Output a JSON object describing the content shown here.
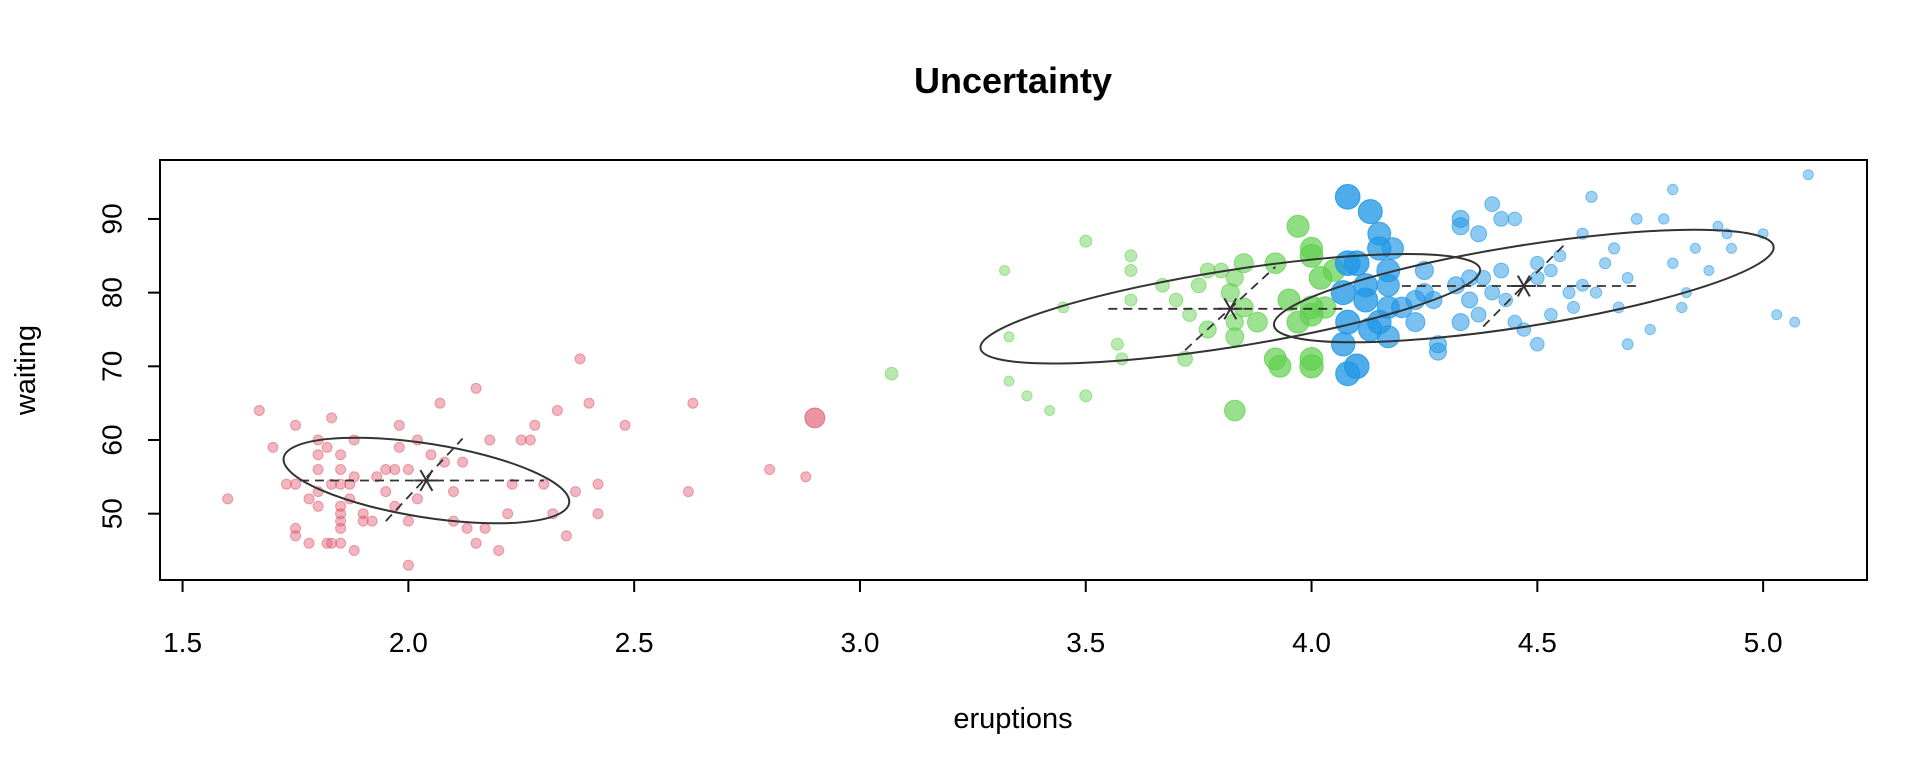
{
  "chart_data": {
    "type": "scatter",
    "title": "Uncertainty",
    "xlabel": "eruptions",
    "ylabel": "waiting",
    "xlim": [
      1.45,
      5.23
    ],
    "ylim": [
      41.0,
      98.0
    ],
    "xticks": [
      "1.5",
      "2.0",
      "2.5",
      "3.0",
      "3.5",
      "4.0",
      "4.5",
      "5.0"
    ],
    "yticks": [
      "50",
      "60",
      "70",
      "80",
      "90"
    ],
    "grid": false,
    "legend": "none",
    "colors": {
      "cluster1": "#df536b",
      "cluster2": "#61d04f",
      "cluster3": "#2297e6",
      "ellipse": "#333333"
    },
    "clusters": [
      {
        "color": "#df536b",
        "center": [
          2.04,
          54.5
        ],
        "ellipse": {
          "rx": 0.32,
          "ry": 5.0,
          "angle_deg": 9
        },
        "axes": {
          "major": [
            [
              1.76,
              54.5
            ],
            [
              2.3,
              54.5
            ]
          ],
          "minor": [
            [
              1.95,
              49.0
            ],
            [
              2.12,
              60.2
            ]
          ]
        },
        "points": [
          [
            1.6,
            52,
            0.05
          ],
          [
            1.67,
            64,
            0.05
          ],
          [
            1.7,
            59,
            0.05
          ],
          [
            1.73,
            54,
            0.05
          ],
          [
            1.75,
            54,
            0.05
          ],
          [
            1.75,
            48,
            0.05
          ],
          [
            1.75,
            47,
            0.05
          ],
          [
            1.75,
            62,
            0.05
          ],
          [
            1.78,
            52,
            0.05
          ],
          [
            1.78,
            46,
            0.05
          ],
          [
            1.8,
            53,
            0.05
          ],
          [
            1.8,
            51,
            0.05
          ],
          [
            1.8,
            56,
            0.05
          ],
          [
            1.8,
            58,
            0.05
          ],
          [
            1.8,
            60,
            0.05
          ],
          [
            1.82,
            46,
            0.05
          ],
          [
            1.82,
            59,
            0.05
          ],
          [
            1.83,
            54,
            0.05
          ],
          [
            1.83,
            46,
            0.05
          ],
          [
            1.83,
            63,
            0.05
          ],
          [
            1.85,
            46,
            0.05
          ],
          [
            1.85,
            48,
            0.05
          ],
          [
            1.85,
            50,
            0.05
          ],
          [
            1.85,
            49,
            0.05
          ],
          [
            1.85,
            51,
            0.05
          ],
          [
            1.85,
            54,
            0.05
          ],
          [
            1.85,
            56,
            0.05
          ],
          [
            1.85,
            58,
            0.05
          ],
          [
            1.87,
            54,
            0.05
          ],
          [
            1.87,
            52,
            0.05
          ],
          [
            1.88,
            55,
            0.05
          ],
          [
            1.88,
            45,
            0.05
          ],
          [
            1.88,
            60,
            0.05
          ],
          [
            1.9,
            50,
            0.05
          ],
          [
            1.9,
            49,
            0.05
          ],
          [
            1.92,
            49,
            0.05
          ],
          [
            1.93,
            55,
            0.05
          ],
          [
            1.95,
            56,
            0.05
          ],
          [
            1.95,
            53,
            0.05
          ],
          [
            1.97,
            56,
            0.05
          ],
          [
            1.97,
            51,
            0.05
          ],
          [
            1.98,
            59,
            0.05
          ],
          [
            1.98,
            62,
            0.05
          ],
          [
            2.0,
            43,
            0.05
          ],
          [
            2.0,
            49,
            0.05
          ],
          [
            2.0,
            56,
            0.05
          ],
          [
            2.02,
            52,
            0.05
          ],
          [
            2.02,
            60,
            0.05
          ],
          [
            2.05,
            58,
            0.05
          ],
          [
            2.07,
            65,
            0.05
          ],
          [
            2.08,
            57,
            0.05
          ],
          [
            2.1,
            53,
            0.05
          ],
          [
            2.1,
            49,
            0.05
          ],
          [
            2.12,
            57,
            0.05
          ],
          [
            2.13,
            48,
            0.05
          ],
          [
            2.15,
            67,
            0.05
          ],
          [
            2.15,
            46,
            0.05
          ],
          [
            2.17,
            48,
            0.05
          ],
          [
            2.18,
            60,
            0.05
          ],
          [
            2.2,
            45,
            0.05
          ],
          [
            2.22,
            50,
            0.05
          ],
          [
            2.23,
            54,
            0.05
          ],
          [
            2.25,
            60,
            0.05
          ],
          [
            2.27,
            60,
            0.05
          ],
          [
            2.28,
            62,
            0.05
          ],
          [
            2.3,
            54,
            0.05
          ],
          [
            2.32,
            50,
            0.05
          ],
          [
            2.33,
            64,
            0.05
          ],
          [
            2.35,
            47,
            0.05
          ],
          [
            2.37,
            53,
            0.05
          ],
          [
            2.38,
            71,
            0.05
          ],
          [
            2.4,
            65,
            0.05
          ],
          [
            2.42,
            54,
            0.05
          ],
          [
            2.42,
            50,
            0.05
          ],
          [
            2.48,
            62,
            0.05
          ],
          [
            2.62,
            53,
            0.05
          ],
          [
            2.63,
            65,
            0.05
          ],
          [
            2.8,
            56,
            0.05
          ],
          [
            2.88,
            55,
            0.05
          ],
          [
            2.9,
            63,
            0.45
          ]
        ]
      },
      {
        "color": "#61d04f",
        "center": [
          3.82,
          77.8
        ],
        "ellipse": {
          "rx": 0.56,
          "ry": 5.2,
          "angle_deg": -9
        },
        "axes": {
          "major": [
            [
              3.55,
              77.8
            ],
            [
              4.08,
              77.8
            ]
          ],
          "minor": [
            [
              3.72,
              72.2
            ],
            [
              3.92,
              83.5
            ]
          ]
        },
        "points": [
          [
            3.07,
            69,
            0.12
          ],
          [
            3.32,
            83,
            0.05
          ],
          [
            3.33,
            74,
            0.05
          ],
          [
            3.33,
            68,
            0.05
          ],
          [
            3.37,
            66,
            0.05
          ],
          [
            3.42,
            64,
            0.05
          ],
          [
            3.45,
            78,
            0.07
          ],
          [
            3.5,
            66,
            0.1
          ],
          [
            3.5,
            87,
            0.1
          ],
          [
            3.57,
            73,
            0.1
          ],
          [
            3.58,
            71,
            0.1
          ],
          [
            3.6,
            79,
            0.1
          ],
          [
            3.6,
            83,
            0.1
          ],
          [
            3.6,
            85,
            0.1
          ],
          [
            3.67,
            81,
            0.15
          ],
          [
            3.7,
            79,
            0.15
          ],
          [
            3.72,
            71,
            0.2
          ],
          [
            3.73,
            77,
            0.15
          ],
          [
            3.75,
            81,
            0.2
          ],
          [
            3.77,
            83,
            0.2
          ],
          [
            3.77,
            75,
            0.3
          ],
          [
            3.8,
            83,
            0.2
          ],
          [
            3.82,
            80,
            0.35
          ],
          [
            3.83,
            82,
            0.3
          ],
          [
            3.83,
            76,
            0.3
          ],
          [
            3.83,
            74,
            0.35
          ],
          [
            3.85,
            78,
            0.4
          ],
          [
            3.85,
            84,
            0.4
          ],
          [
            3.83,
            64,
            0.5
          ],
          [
            3.88,
            76,
            0.45
          ],
          [
            3.92,
            84,
            0.5
          ],
          [
            3.92,
            71,
            0.6
          ],
          [
            3.93,
            70,
            0.6
          ],
          [
            3.95,
            79,
            0.6
          ],
          [
            3.97,
            89,
            0.6
          ],
          [
            3.97,
            76,
            0.6
          ],
          [
            4.0,
            77,
            0.65
          ],
          [
            4.0,
            78,
            0.65
          ],
          [
            4.0,
            71,
            0.65
          ],
          [
            4.0,
            70,
            0.7
          ],
          [
            4.0,
            86,
            0.6
          ],
          [
            4.0,
            85,
            0.65
          ],
          [
            4.02,
            82,
            0.65
          ],
          [
            4.03,
            78,
            0.55
          ],
          [
            4.05,
            83,
            0.6
          ]
        ]
      },
      {
        "color": "#2297e6",
        "center": [
          4.47,
          80.9
        ],
        "ellipse": {
          "rx": 0.56,
          "ry": 5.5,
          "angle_deg": -9
        },
        "axes": {
          "major": [
            [
              4.2,
              80.9
            ],
            [
              4.73,
              80.9
            ]
          ],
          "minor": [
            [
              4.38,
              75.4
            ],
            [
              4.56,
              86.5
            ]
          ]
        },
        "points": [
          [
            4.07,
            73,
            0.7
          ],
          [
            4.07,
            80,
            0.75
          ],
          [
            4.08,
            93,
            0.8
          ],
          [
            4.08,
            84,
            0.8
          ],
          [
            4.08,
            69,
            0.75
          ],
          [
            4.08,
            76,
            0.75
          ],
          [
            4.1,
            70,
            0.8
          ],
          [
            4.1,
            84,
            0.8
          ],
          [
            4.12,
            79,
            0.75
          ],
          [
            4.12,
            81,
            0.7
          ],
          [
            4.13,
            75,
            0.7
          ],
          [
            4.13,
            91,
            0.75
          ],
          [
            4.15,
            76,
            0.7
          ],
          [
            4.15,
            86,
            0.7
          ],
          [
            4.15,
            88,
            0.65
          ],
          [
            4.17,
            74,
            0.6
          ],
          [
            4.17,
            83,
            0.65
          ],
          [
            4.17,
            81,
            0.6
          ],
          [
            4.17,
            78,
            0.6
          ],
          [
            4.18,
            86,
            0.55
          ],
          [
            4.2,
            78,
            0.5
          ],
          [
            4.23,
            79,
            0.4
          ],
          [
            4.23,
            76,
            0.4
          ],
          [
            4.25,
            83,
            0.35
          ],
          [
            4.25,
            80,
            0.35
          ],
          [
            4.27,
            79,
            0.3
          ],
          [
            4.28,
            73,
            0.3
          ],
          [
            4.28,
            72,
            0.3
          ],
          [
            4.32,
            81,
            0.3
          ],
          [
            4.33,
            90,
            0.3
          ],
          [
            4.33,
            89,
            0.3
          ],
          [
            4.33,
            76,
            0.3
          ],
          [
            4.35,
            79,
            0.25
          ],
          [
            4.35,
            82,
            0.25
          ],
          [
            4.37,
            88,
            0.25
          ],
          [
            4.37,
            77,
            0.2
          ],
          [
            4.38,
            82,
            0.2
          ],
          [
            4.4,
            92,
            0.2
          ],
          [
            4.4,
            80,
            0.2
          ],
          [
            4.42,
            90,
            0.2
          ],
          [
            4.42,
            83,
            0.2
          ],
          [
            4.43,
            79,
            0.15
          ],
          [
            4.45,
            90,
            0.15
          ],
          [
            4.45,
            76,
            0.15
          ],
          [
            4.47,
            75,
            0.15
          ],
          [
            4.5,
            82,
            0.15
          ],
          [
            4.5,
            84,
            0.15
          ],
          [
            4.5,
            73,
            0.15
          ],
          [
            4.53,
            77,
            0.12
          ],
          [
            4.53,
            83,
            0.12
          ],
          [
            4.55,
            85,
            0.1
          ],
          [
            4.57,
            80,
            0.1
          ],
          [
            4.58,
            78,
            0.1
          ],
          [
            4.6,
            81,
            0.1
          ],
          [
            4.6,
            88,
            0.08
          ],
          [
            4.62,
            93,
            0.08
          ],
          [
            4.63,
            80,
            0.08
          ],
          [
            4.65,
            84,
            0.08
          ],
          [
            4.67,
            86,
            0.08
          ],
          [
            4.68,
            78,
            0.07
          ],
          [
            4.7,
            73,
            0.07
          ],
          [
            4.7,
            82,
            0.07
          ],
          [
            4.72,
            90,
            0.07
          ],
          [
            4.75,
            75,
            0.06
          ],
          [
            4.78,
            90,
            0.06
          ],
          [
            4.8,
            94,
            0.06
          ],
          [
            4.8,
            84,
            0.06
          ],
          [
            4.82,
            78,
            0.06
          ],
          [
            4.83,
            80,
            0.05
          ],
          [
            4.85,
            86,
            0.05
          ],
          [
            4.88,
            83,
            0.05
          ],
          [
            4.9,
            89,
            0.05
          ],
          [
            4.92,
            88,
            0.05
          ],
          [
            4.93,
            86,
            0.05
          ],
          [
            5.0,
            88,
            0.05
          ],
          [
            5.03,
            77,
            0.05
          ],
          [
            5.07,
            76,
            0.05
          ],
          [
            5.1,
            96,
            0.05
          ]
        ]
      }
    ]
  }
}
